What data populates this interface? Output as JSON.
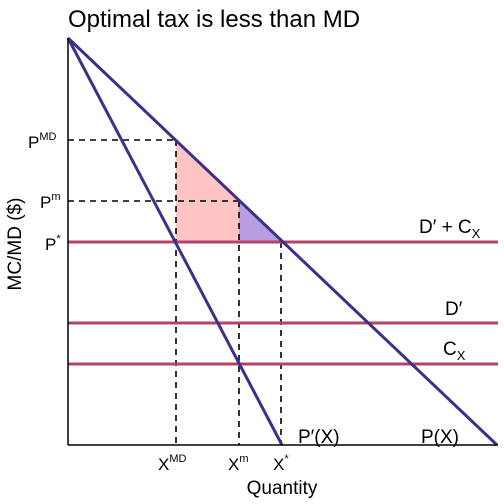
{
  "title": "Optimal tax is less than MD",
  "axes": {
    "x_label": "Quantity",
    "y_label": "MC/MD ($)"
  },
  "y_ticks": [
    {
      "base": "P",
      "sup": "MD"
    },
    {
      "base": "P",
      "sup": "m"
    },
    {
      "base": "P",
      "sup": "*"
    }
  ],
  "x_ticks": [
    {
      "base": "X",
      "sup": "MD"
    },
    {
      "base": "X",
      "sup": "m"
    },
    {
      "base": "X",
      "sup": "*"
    }
  ],
  "curves": {
    "p_label": "P(X)",
    "pprime_label": "P′(X)",
    "d_plus_c_label": "D′ + C",
    "d_plus_c_sub": "X",
    "dprime_label": "D′",
    "cx_label": "C",
    "cx_sub": "X"
  },
  "colors": {
    "demand_lines": "#3f2f8a",
    "horizontal_lines": "#b5406a",
    "pink_area": "#ffc4c4",
    "purple_area": "#b89ee0"
  }
}
